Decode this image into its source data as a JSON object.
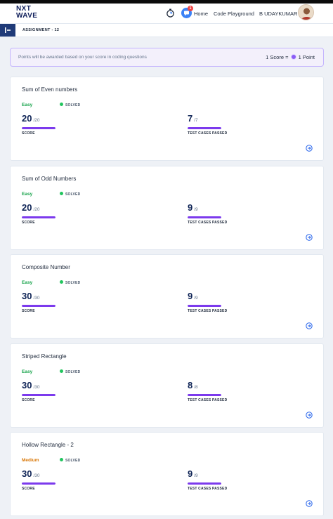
{
  "header": {
    "logo": {
      "line1": "NXT",
      "line2": "WAVE",
      "tm": "TM"
    },
    "notification_count": "1",
    "nav": [
      "Home",
      "Code Playground"
    ],
    "user_name": "B UDAYKUMAR"
  },
  "subbar": {
    "title": "ASSIGNMENT - 12"
  },
  "notice": {
    "text": "Points will be awarded based on your score in coding questions",
    "score_label": "1 Score =",
    "point_label": "1 Point"
  },
  "labels": {
    "score": "SCORE",
    "tests": "TEST CASES PASSED"
  },
  "colors": {
    "easy": "#16a34a",
    "medium": "#d97706",
    "progress": "#7c3aed",
    "solved": "#22c55e"
  },
  "questions": [
    {
      "title": "Sum of Even numbers",
      "difficulty": "Easy",
      "status": "SOLVED",
      "score": "20",
      "score_max": "/20",
      "score_pct": 100,
      "tests": "7",
      "tests_max": "/7",
      "tests_pct": 100
    },
    {
      "title": "Sum of Odd Numbers",
      "difficulty": "Easy",
      "status": "SOLVED",
      "score": "20",
      "score_max": "/20",
      "score_pct": 100,
      "tests": "9",
      "tests_max": "/9",
      "tests_pct": 100
    },
    {
      "title": "Composite Number",
      "difficulty": "Easy",
      "status": "SOLVED",
      "score": "30",
      "score_max": "/30",
      "score_pct": 100,
      "tests": "9",
      "tests_max": "/9",
      "tests_pct": 100
    },
    {
      "title": "Striped Rectangle",
      "difficulty": "Easy",
      "status": "SOLVED",
      "score": "30",
      "score_max": "/30",
      "score_pct": 100,
      "tests": "8",
      "tests_max": "/8",
      "tests_pct": 100
    },
    {
      "title": "Hollow Rectangle - 2",
      "difficulty": "Medium",
      "status": "SOLVED",
      "score": "30",
      "score_max": "/30",
      "score_pct": 100,
      "tests": "9",
      "tests_max": "/9",
      "tests_pct": 100
    }
  ]
}
